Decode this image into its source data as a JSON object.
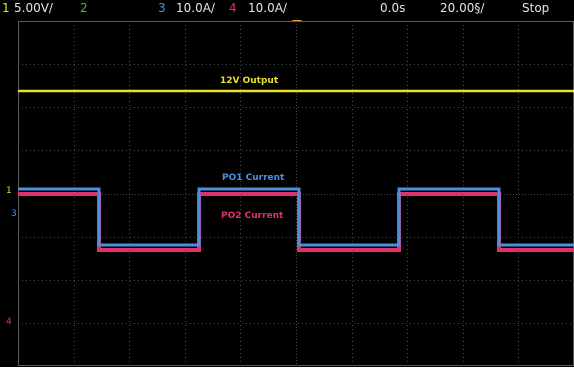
{
  "status_bar": {
    "ch1_number": "1",
    "ch1_scale": "5.00V/",
    "ch2_number": "2",
    "ch3_number": "3",
    "ch3_scale": "10.0A/",
    "ch4_number": "4",
    "ch4_scale": "10.0A/",
    "time_offset": "0.0s",
    "time_scale": "20.00§/",
    "run_state": "Stop"
  },
  "waveforms": {
    "output_label": "12V Output",
    "po1_label": "PO1 Current",
    "po2_label": "PO2 Current"
  },
  "markers": {
    "ch1_marker": "1",
    "ch3_marker": "3",
    "ch4_marker": "4"
  },
  "colors": {
    "ch1": "#e8e02a",
    "ch2": "#3fbf3f",
    "ch3": "#4a8fe0",
    "ch4": "#e0306a",
    "grid": "#4a4a4a",
    "trigger": "#f0a020"
  }
}
